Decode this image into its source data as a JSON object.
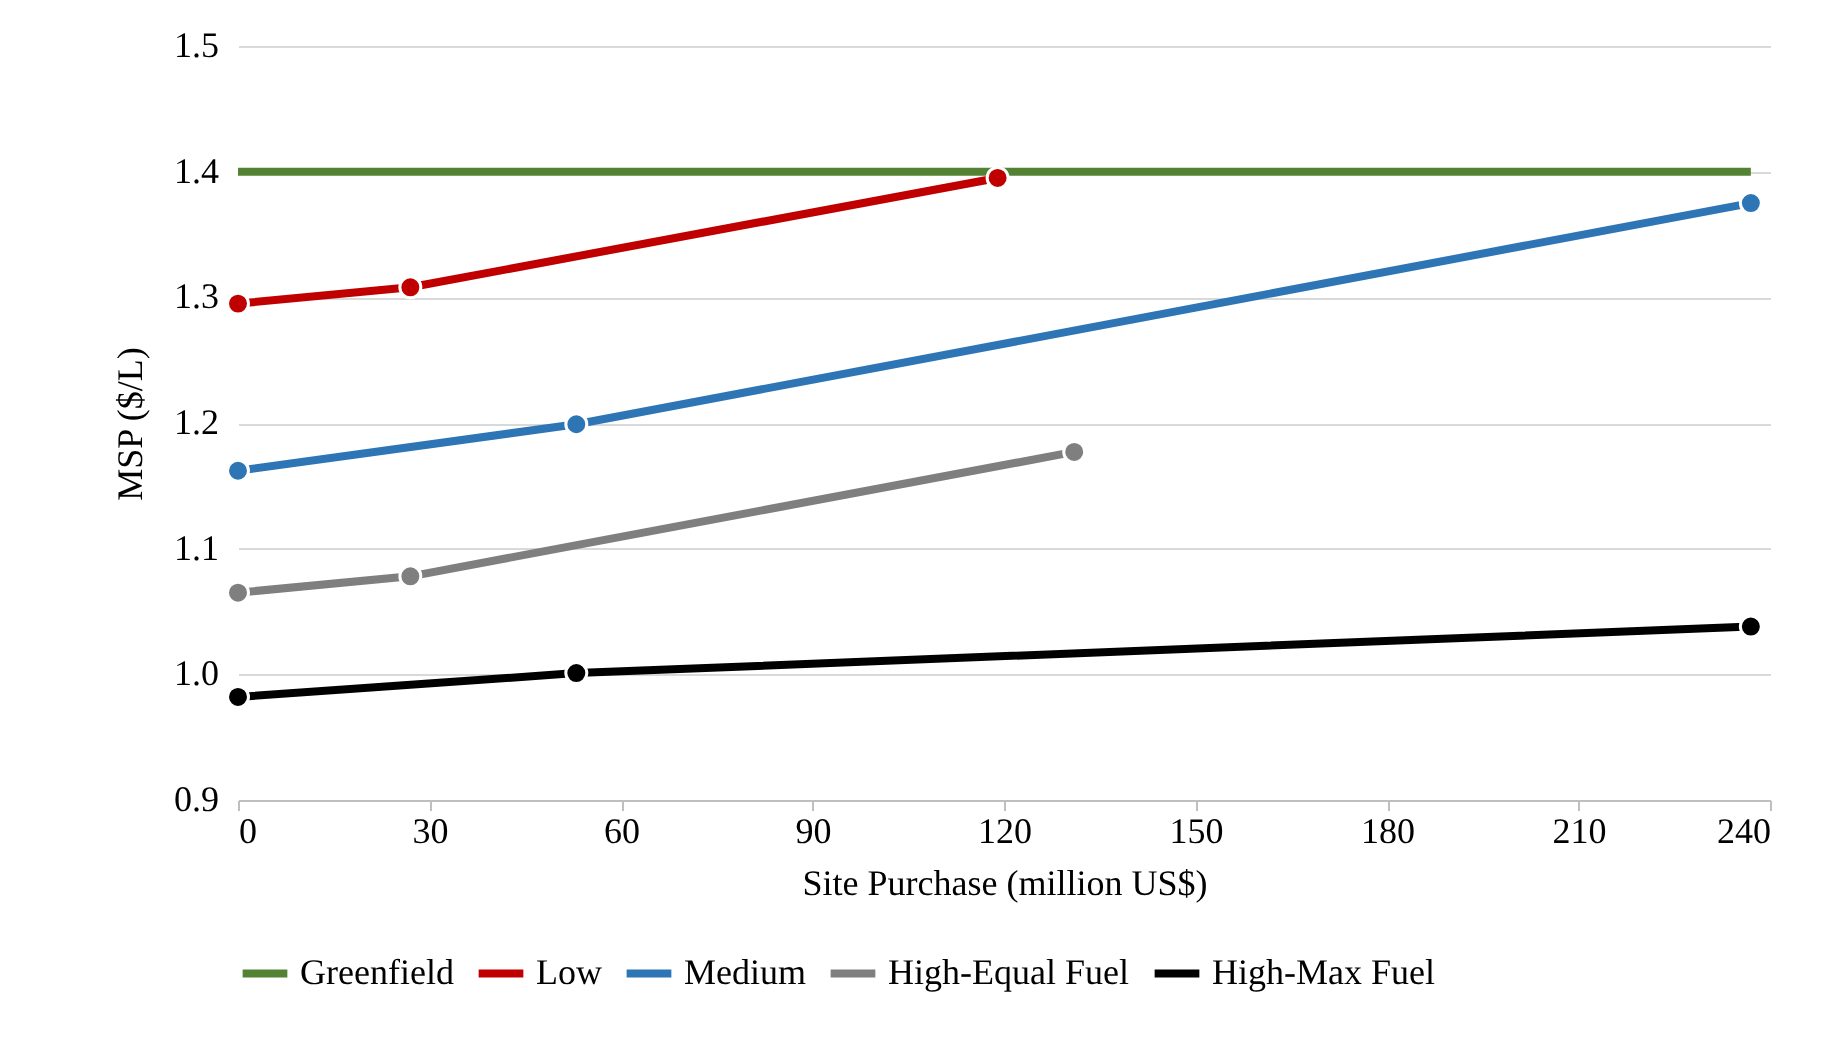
{
  "chart_data": {
    "type": "line",
    "xlabel": "Site Purchase (million US$)",
    "ylabel": "MSP ($/L)",
    "xlim": [
      0,
      240
    ],
    "xticks": [
      0,
      30,
      60,
      90,
      120,
      150,
      180,
      210,
      240
    ],
    "ylim": [
      0.9,
      1.5
    ],
    "yticks": [
      {
        "value": 0.9,
        "label": "0.9"
      },
      {
        "value": 1.0,
        "label": "1.0"
      },
      {
        "value": 1.1,
        "label": "1.1"
      },
      {
        "value": 1.2,
        "label": "1.2"
      },
      {
        "value": 1.3,
        "label": "1.3"
      },
      {
        "value": 1.4,
        "label": "1.4"
      },
      {
        "value": 1.5,
        "label": "1.5"
      }
    ],
    "grid": "y",
    "legend": "bottom",
    "series": [
      {
        "name": "Greenfield",
        "color": "#548235",
        "marker": "none",
        "x": [
          0,
          237
        ],
        "values": [
          1.4,
          1.4
        ]
      },
      {
        "name": "Low",
        "color": "#c00000",
        "marker": "circle",
        "x": [
          0,
          27,
          119
        ],
        "values": [
          1.295,
          1.308,
          1.395
        ]
      },
      {
        "name": "Medium",
        "color": "#2e75b6",
        "marker": "circle",
        "x": [
          0,
          53,
          237
        ],
        "values": [
          1.162,
          1.199,
          1.375
        ]
      },
      {
        "name": "High-Equal Fuel",
        "color": "#7f7f7f",
        "marker": "circle",
        "x": [
          0,
          27,
          131
        ],
        "values": [
          1.065,
          1.078,
          1.177
        ]
      },
      {
        "name": "High-Max Fuel",
        "color": "#000000",
        "marker": "circle",
        "x": [
          0,
          53,
          237
        ],
        "values": [
          0.982,
          1.001,
          1.038
        ]
      }
    ]
  }
}
